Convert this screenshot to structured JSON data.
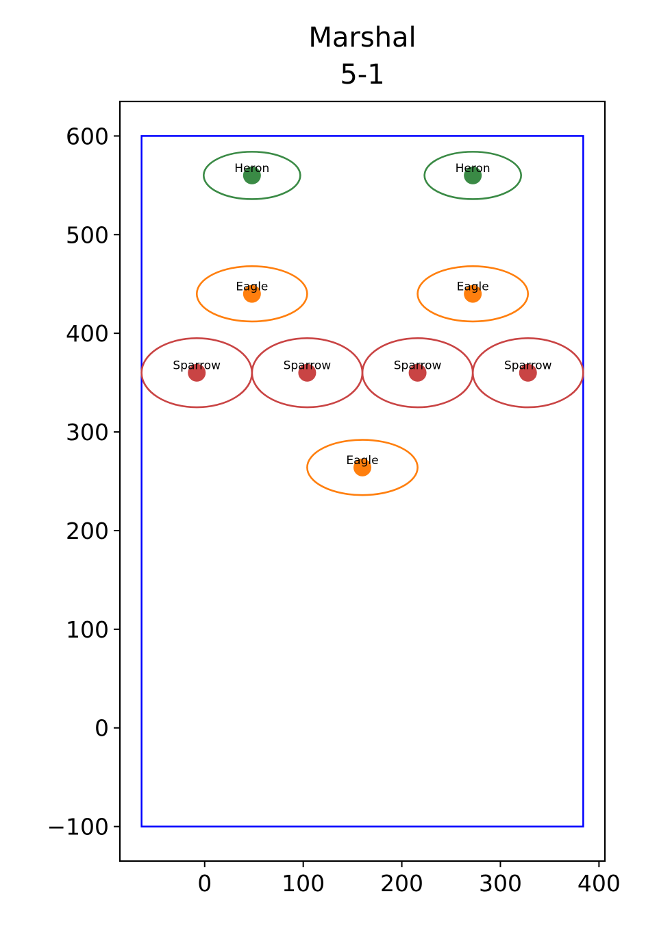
{
  "chart_data": {
    "type": "scatter",
    "title": "Marshal",
    "subtitle": "5-1",
    "xlabel": "",
    "ylabel": "",
    "xlim": [
      -86,
      406
    ],
    "ylim": [
      -135,
      635
    ],
    "x_ticks": [
      0,
      100,
      200,
      300,
      400
    ],
    "y_ticks": [
      -100,
      0,
      100,
      200,
      300,
      400,
      500,
      600
    ],
    "x_tick_labels": [
      "0",
      "100",
      "200",
      "300",
      "400"
    ],
    "y_tick_labels": [
      "−100",
      "0",
      "100",
      "200",
      "300",
      "400",
      "500",
      "600"
    ],
    "grid": false,
    "legend": "none",
    "boundary": {
      "x": [
        -64,
        384
      ],
      "y": [
        -100,
        600
      ],
      "color": "#0000ff"
    },
    "colors": {
      "Heron": "#3a8a45",
      "Eagle": "#ff7f0e",
      "Sparrow": "#c94444"
    },
    "points": [
      {
        "label": "Heron",
        "x": 48,
        "y": 560,
        "rx": 49,
        "ry": 24
      },
      {
        "label": "Heron",
        "x": 272,
        "y": 560,
        "rx": 49,
        "ry": 24
      },
      {
        "label": "Eagle",
        "x": 48,
        "y": 440,
        "rx": 56,
        "ry": 28
      },
      {
        "label": "Eagle",
        "x": 272,
        "y": 440,
        "rx": 56,
        "ry": 28
      },
      {
        "label": "Sparrow",
        "x": -8,
        "y": 360,
        "rx": 56,
        "ry": 35
      },
      {
        "label": "Sparrow",
        "x": 104,
        "y": 360,
        "rx": 56,
        "ry": 35
      },
      {
        "label": "Sparrow",
        "x": 216,
        "y": 360,
        "rx": 56,
        "ry": 35
      },
      {
        "label": "Sparrow",
        "x": 328,
        "y": 360,
        "rx": 56,
        "ry": 35
      },
      {
        "label": "Eagle",
        "x": 160,
        "y": 264,
        "rx": 56,
        "ry": 28
      }
    ]
  }
}
